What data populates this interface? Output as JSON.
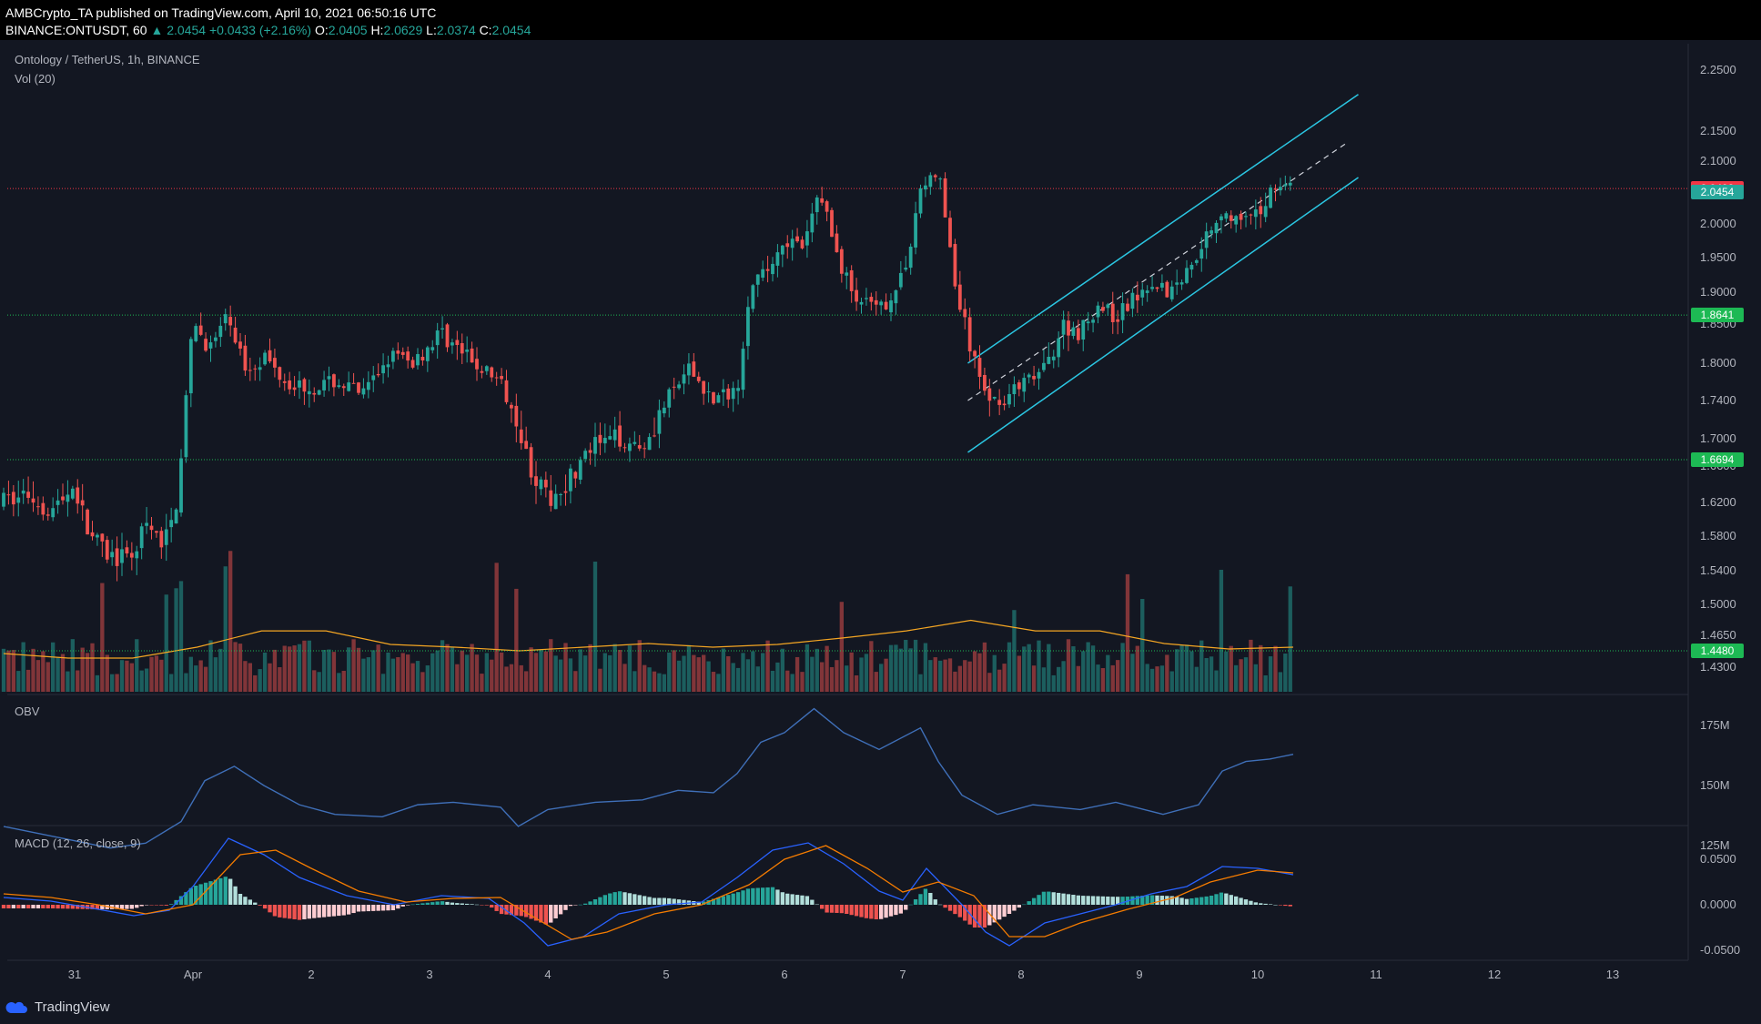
{
  "header": {
    "published_line": "AMBCrypto_TA published on TradingView.com, April 10, 2021 06:50:16 UTC",
    "symbol_line_prefix": "BINANCE:ONTUSDT, 60",
    "change": "2.0454",
    "change_delta": "+0.0433 (+2.16%)",
    "o_label": "O:",
    "o_value": "2.0405",
    "h_label": "H:",
    "h_value": "2.0629",
    "l_label": "L:",
    "l_value": "2.0374",
    "c_label": "C:",
    "c_value": "2.0454"
  },
  "pane_labels": {
    "main": "Ontology / TetherUS, 1h, BINANCE",
    "volume": "Vol (20)",
    "obv": "OBV",
    "macd": "MACD (12, 26, close, 9)"
  },
  "footer": {
    "brand": "TradingView"
  },
  "colors": {
    "background": "#131722",
    "bull": "#26a69a",
    "bear": "#ef5350",
    "channel": "#2bc6e2",
    "obv_line": "#3f6fb8",
    "macd_line": "#2962ff",
    "signal_line": "#f57c00",
    "support": "#1db954",
    "resistance": "#f23645"
  },
  "price_labels": [
    {
      "value": "2.0498",
      "color": "#f23645"
    },
    {
      "value": "2.0454",
      "color": "#26a69a"
    },
    {
      "value": "1.8641",
      "color": "#1db954"
    },
    {
      "value": "1.6694",
      "color": "#1db954"
    },
    {
      "value": "1.4480",
      "color": "#1db954"
    }
  ],
  "chart_data": {
    "type": "candlestick",
    "symbol": "ONTUSDT",
    "timeframe": "1h",
    "x_ticks": [
      "31",
      "Apr",
      "2",
      "3",
      "4",
      "5",
      "6",
      "7",
      "8",
      "9",
      "10",
      "11",
      "12",
      "13"
    ],
    "y_ticks": [
      "2.2500",
      "2.1500",
      "2.1000",
      "2.0500",
      "2.0000",
      "1.9500",
      "1.9000",
      "1.8500",
      "1.8000",
      "1.7400",
      "1.7000",
      "1.6600",
      "1.6200",
      "1.5800",
      "1.5400",
      "1.5000",
      "1.4650",
      "1.4300"
    ],
    "ylim": [
      1.42,
      2.27
    ],
    "horizontal_levels": [
      {
        "value": 2.0498,
        "style": "dotted",
        "color": "#f23645"
      },
      {
        "value": 1.8641,
        "style": "dotted",
        "color": "#1db954"
      },
      {
        "value": 1.6694,
        "style": "dotted",
        "color": "#1db954"
      },
      {
        "value": 1.448,
        "style": "dotted",
        "color": "#1db954"
      }
    ],
    "ascending_channel": {
      "start_day": 7.55,
      "end_day": 10.85,
      "upper": [
        1.8,
        2.21
      ],
      "middle": [
        1.74,
        2.13
      ],
      "lower": [
        1.68,
        2.07
      ]
    },
    "close_path": [
      [
        -0.6,
        1.62
      ],
      [
        -0.4,
        1.63
      ],
      [
        -0.2,
        1.61
      ],
      [
        0.0,
        1.64
      ],
      [
        0.1,
        1.59
      ],
      [
        0.25,
        1.56
      ],
      [
        0.45,
        1.55
      ],
      [
        0.6,
        1.59
      ],
      [
        0.75,
        1.57
      ],
      [
        0.85,
        1.61
      ],
      [
        0.93,
        1.72
      ],
      [
        1.0,
        1.85
      ],
      [
        1.15,
        1.82
      ],
      [
        1.3,
        1.86
      ],
      [
        1.45,
        1.79
      ],
      [
        1.6,
        1.81
      ],
      [
        1.8,
        1.77
      ],
      [
        2.0,
        1.76
      ],
      [
        2.2,
        1.77
      ],
      [
        2.45,
        1.75
      ],
      [
        2.65,
        1.81
      ],
      [
        2.85,
        1.8
      ],
      [
        3.1,
        1.84
      ],
      [
        3.35,
        1.8
      ],
      [
        3.55,
        1.78
      ],
      [
        3.75,
        1.72
      ],
      [
        3.85,
        1.66
      ],
      [
        4.0,
        1.62
      ],
      [
        4.2,
        1.65
      ],
      [
        4.4,
        1.69
      ],
      [
        4.6,
        1.7
      ],
      [
        4.8,
        1.69
      ],
      [
        5.0,
        1.74
      ],
      [
        5.2,
        1.79
      ],
      [
        5.4,
        1.74
      ],
      [
        5.6,
        1.76
      ],
      [
        5.7,
        1.9
      ],
      [
        5.85,
        1.93
      ],
      [
        6.0,
        1.98
      ],
      [
        6.15,
        1.96
      ],
      [
        6.3,
        2.05
      ],
      [
        6.45,
        1.95
      ],
      [
        6.6,
        1.89
      ],
      [
        6.8,
        1.87
      ],
      [
        7.0,
        1.92
      ],
      [
        7.15,
        2.05
      ],
      [
        7.3,
        2.08
      ],
      [
        7.45,
        1.9
      ],
      [
        7.6,
        1.8
      ],
      [
        7.75,
        1.74
      ],
      [
        7.9,
        1.75
      ],
      [
        8.05,
        1.77
      ],
      [
        8.2,
        1.79
      ],
      [
        8.35,
        1.85
      ],
      [
        8.5,
        1.84
      ],
      [
        8.65,
        1.88
      ],
      [
        8.8,
        1.86
      ],
      [
        8.95,
        1.89
      ],
      [
        9.1,
        1.92
      ],
      [
        9.25,
        1.9
      ],
      [
        9.4,
        1.93
      ],
      [
        9.55,
        1.98
      ],
      [
        9.7,
        2.02
      ],
      [
        9.85,
        2.0
      ],
      [
        10.0,
        2.01
      ],
      [
        10.15,
        2.06
      ],
      [
        10.3,
        2.05
      ]
    ],
    "volume": {
      "ma_levels": [
        1.445,
        1.44,
        1.44,
        1.452,
        1.47,
        1.47,
        1.455,
        1.452,
        1.448,
        1.452,
        1.456,
        1.452,
        1.455,
        1.462,
        1.47,
        1.482,
        1.47,
        1.47,
        1.456,
        1.45,
        1.452
      ],
      "ma_start_day": -0.6,
      "ma_end_day": 10.3
    },
    "obv": {
      "y_ticks": [
        "175M",
        "150M",
        "125M"
      ],
      "points": [
        [
          -0.6,
          133
        ],
        [
          -0.3,
          130
        ],
        [
          0.0,
          127
        ],
        [
          0.3,
          124
        ],
        [
          0.6,
          126
        ],
        [
          0.9,
          135
        ],
        [
          1.1,
          152
        ],
        [
          1.35,
          158
        ],
        [
          1.6,
          150
        ],
        [
          1.9,
          142
        ],
        [
          2.2,
          138
        ],
        [
          2.6,
          137
        ],
        [
          2.9,
          142
        ],
        [
          3.2,
          143
        ],
        [
          3.6,
          141
        ],
        [
          3.75,
          133
        ],
        [
          4.0,
          140
        ],
        [
          4.4,
          143
        ],
        [
          4.8,
          144
        ],
        [
          5.1,
          148
        ],
        [
          5.4,
          147
        ],
        [
          5.6,
          155
        ],
        [
          5.8,
          168
        ],
        [
          6.0,
          172
        ],
        [
          6.25,
          182
        ],
        [
          6.5,
          172
        ],
        [
          6.8,
          165
        ],
        [
          7.15,
          174
        ],
        [
          7.3,
          160
        ],
        [
          7.5,
          146
        ],
        [
          7.8,
          138
        ],
        [
          8.1,
          142
        ],
        [
          8.5,
          140
        ],
        [
          8.8,
          143
        ],
        [
          9.2,
          138
        ],
        [
          9.5,
          142
        ],
        [
          9.7,
          156
        ],
        [
          9.9,
          160
        ],
        [
          10.1,
          161
        ],
        [
          10.3,
          163
        ]
      ]
    },
    "macd": {
      "y_ticks": [
        "0.0500",
        "0.0000",
        "-0.0500"
      ],
      "macd_points": [
        [
          -0.6,
          0.008
        ],
        [
          -0.2,
          0.004
        ],
        [
          0.2,
          -0.005
        ],
        [
          0.5,
          -0.012
        ],
        [
          0.8,
          -0.006
        ],
        [
          1.0,
          0.02
        ],
        [
          1.3,
          0.073
        ],
        [
          1.6,
          0.055
        ],
        [
          1.9,
          0.03
        ],
        [
          2.3,
          0.01
        ],
        [
          2.7,
          0.0
        ],
        [
          3.1,
          0.01
        ],
        [
          3.5,
          0.007
        ],
        [
          3.8,
          -0.02
        ],
        [
          4.0,
          -0.045
        ],
        [
          4.3,
          -0.035
        ],
        [
          4.6,
          -0.01
        ],
        [
          5.0,
          0.0
        ],
        [
          5.3,
          0.003
        ],
        [
          5.6,
          0.03
        ],
        [
          5.9,
          0.06
        ],
        [
          6.2,
          0.068
        ],
        [
          6.5,
          0.045
        ],
        [
          6.8,
          0.015
        ],
        [
          7.0,
          0.005
        ],
        [
          7.2,
          0.04
        ],
        [
          7.5,
          0.0
        ],
        [
          7.7,
          -0.03
        ],
        [
          7.9,
          -0.045
        ],
        [
          8.2,
          -0.02
        ],
        [
          8.5,
          -0.01
        ],
        [
          8.8,
          0.0
        ],
        [
          9.1,
          0.012
        ],
        [
          9.4,
          0.02
        ],
        [
          9.7,
          0.042
        ],
        [
          10.0,
          0.04
        ],
        [
          10.3,
          0.033
        ]
      ],
      "signal_points": [
        [
          -0.6,
          0.012
        ],
        [
          -0.2,
          0.008
        ],
        [
          0.2,
          0.0
        ],
        [
          0.6,
          -0.01
        ],
        [
          1.0,
          0.0
        ],
        [
          1.4,
          0.055
        ],
        [
          1.7,
          0.06
        ],
        [
          2.0,
          0.04
        ],
        [
          2.4,
          0.015
        ],
        [
          2.8,
          0.003
        ],
        [
          3.2,
          0.007
        ],
        [
          3.6,
          0.008
        ],
        [
          3.9,
          -0.015
        ],
        [
          4.2,
          -0.038
        ],
        [
          4.5,
          -0.03
        ],
        [
          4.9,
          -0.01
        ],
        [
          5.3,
          0.0
        ],
        [
          5.7,
          0.022
        ],
        [
          6.0,
          0.05
        ],
        [
          6.35,
          0.065
        ],
        [
          6.7,
          0.04
        ],
        [
          7.0,
          0.014
        ],
        [
          7.3,
          0.025
        ],
        [
          7.6,
          0.01
        ],
        [
          7.9,
          -0.035
        ],
        [
          8.2,
          -0.035
        ],
        [
          8.5,
          -0.02
        ],
        [
          8.9,
          -0.005
        ],
        [
          9.3,
          0.008
        ],
        [
          9.6,
          0.025
        ],
        [
          10.0,
          0.038
        ],
        [
          10.3,
          0.035
        ]
      ]
    }
  }
}
